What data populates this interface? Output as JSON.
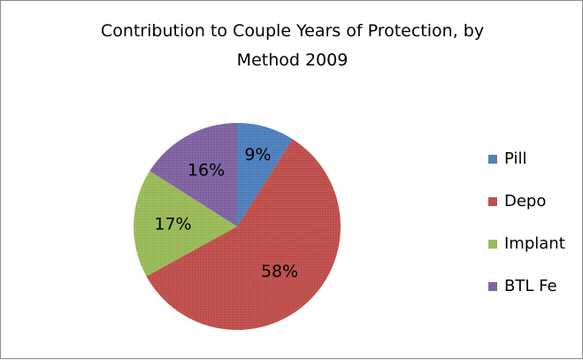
{
  "chart_data": {
    "type": "pie",
    "title": [
      "Contribution to Couple Years of Protection, by",
      "Method 2009"
    ],
    "series": [
      {
        "name": "Pill",
        "value": 9,
        "label": "9%",
        "color": "#4f81bd"
      },
      {
        "name": "Depo",
        "value": 58,
        "label": "58%",
        "color": "#c0504d"
      },
      {
        "name": "Implant",
        "value": 17,
        "label": "17%",
        "color": "#9bbb59"
      },
      {
        "name": "BTL Fe",
        "value": 16,
        "label": "16%",
        "color": "#8064a2"
      }
    ],
    "legend_position": "right"
  }
}
